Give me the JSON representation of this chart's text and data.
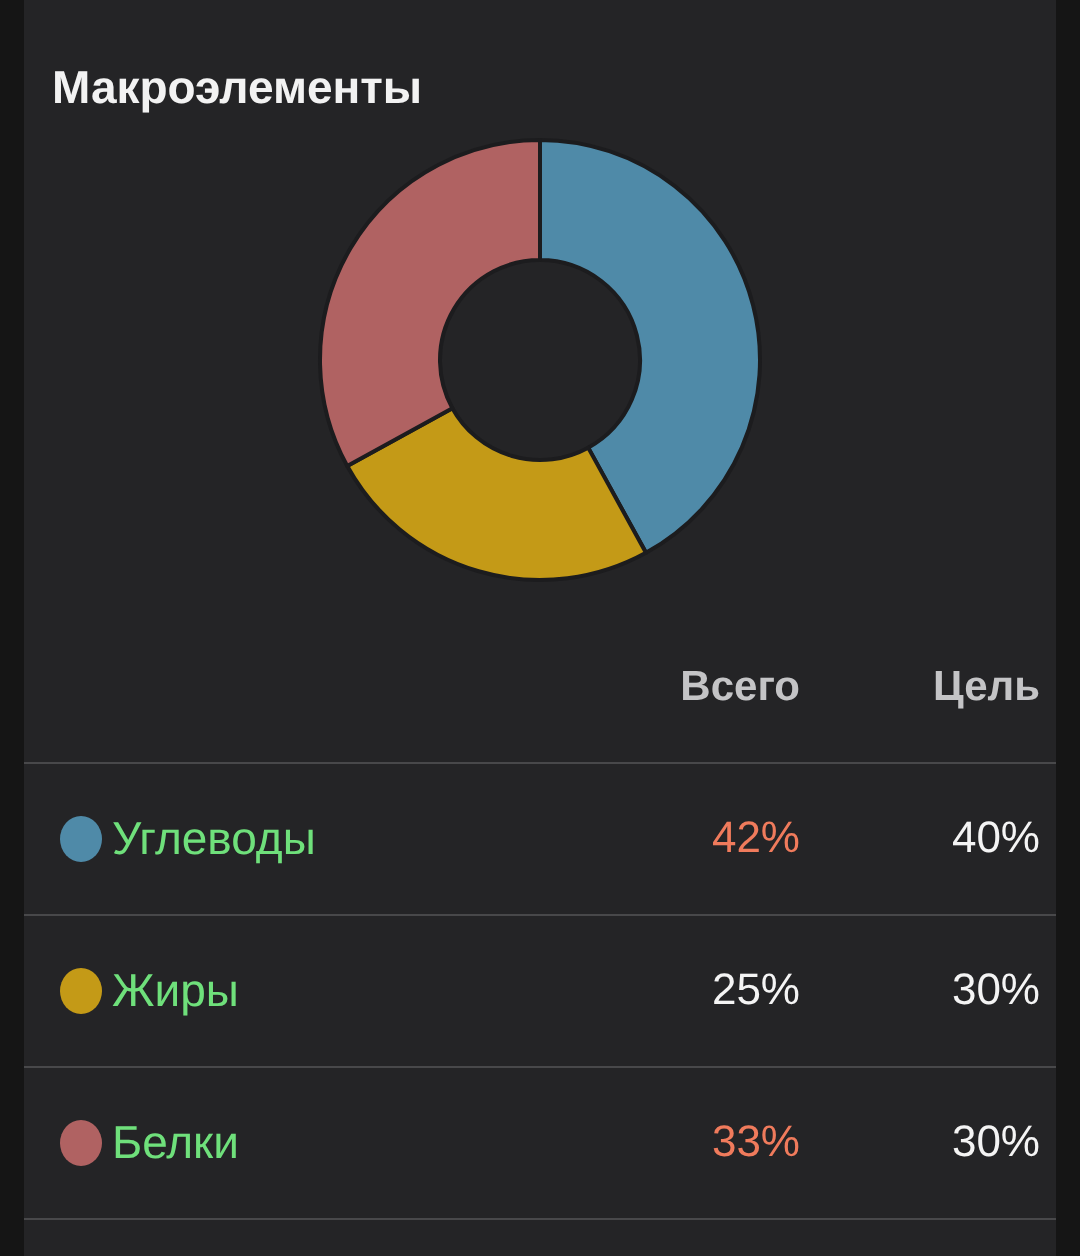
{
  "chart_data": {
    "type": "donut",
    "title": "Макроэлементы",
    "categories": [
      "Углеводы",
      "Жиры",
      "Белки"
    ],
    "values": [
      42,
      25,
      33
    ],
    "value_labels": [
      "42%",
      "25%",
      "33%"
    ],
    "colors": [
      "#4f8aa8",
      "#c49a17",
      "#b06262"
    ],
    "annotations": [
      "Всего",
      "Цель",
      "40%",
      "30%",
      "30%"
    ],
    "legend": "bottom"
  }
}
